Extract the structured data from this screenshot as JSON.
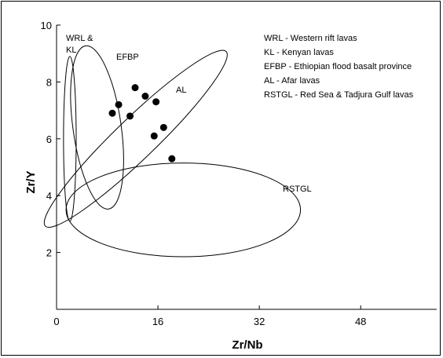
{
  "chart_data": {
    "type": "scatter",
    "xlabel": "Zr/Nb",
    "ylabel": "Zr/Y",
    "xlim": [
      0,
      60
    ],
    "ylim": [
      0,
      10
    ],
    "x_ticks": [
      0,
      16,
      32,
      48
    ],
    "y_ticks": [
      2,
      4,
      6,
      8,
      10
    ],
    "x_tick_labels": [
      "0",
      "16",
      "32",
      "48"
    ],
    "y_tick_labels": [
      "2",
      "4",
      "6",
      "8",
      "10"
    ],
    "grid": false,
    "legend_position": "top-right",
    "legend": [
      "WRL - Western rift lavas",
      "KL - Kenyan lavas",
      "EFBP - Ethiopian flood basalt province",
      "AL - Afar lavas",
      "RSTGL - Red Sea & Tadjura Gulf lavas"
    ],
    "points": [
      {
        "x": 8.8,
        "y": 6.9
      },
      {
        "x": 9.8,
        "y": 7.2
      },
      {
        "x": 11.6,
        "y": 6.8
      },
      {
        "x": 12.4,
        "y": 7.8
      },
      {
        "x": 14.0,
        "y": 7.5
      },
      {
        "x": 15.7,
        "y": 7.3
      },
      {
        "x": 15.4,
        "y": 6.1
      },
      {
        "x": 16.9,
        "y": 6.4
      },
      {
        "x": 18.2,
        "y": 5.3
      }
    ],
    "fields": [
      {
        "name": "WRL &",
        "name2": "KL",
        "cx": 2.1,
        "cy": 6.0,
        "rx": 1.0,
        "ry": 2.9,
        "rot": 0
      },
      {
        "name": "EFBP",
        "cx": 6.4,
        "cy": 6.4,
        "rx": 3.8,
        "ry": 2.9,
        "rot": -8
      },
      {
        "name": "AL",
        "cx": 12.5,
        "cy": 6.0,
        "rx": 13.0,
        "ry": 1.7,
        "rot": -44
      },
      {
        "name": "RSTGL",
        "cx": 20.0,
        "cy": 3.5,
        "rx": 18.5,
        "ry": 1.65,
        "rot": 0
      }
    ]
  }
}
